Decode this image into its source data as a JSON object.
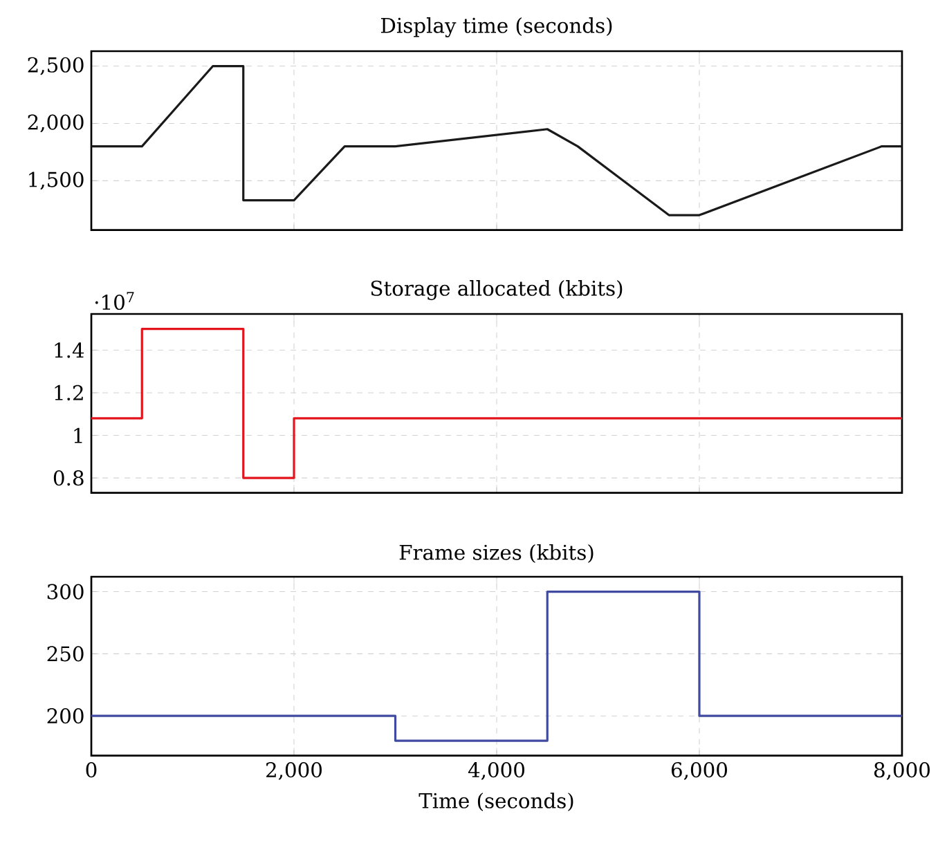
{
  "chart_data": [
    {
      "type": "line",
      "title": "Display time (seconds)",
      "x": [
        0,
        500,
        1200,
        1500,
        1500,
        2000,
        2500,
        3000,
        4500,
        4800,
        5700,
        6000,
        7800,
        8000
      ],
      "values": [
        1800,
        1800,
        2500,
        2500,
        1330,
        1330,
        1800,
        1800,
        1950,
        1800,
        1200,
        1200,
        1800,
        1800
      ],
      "color": "#1a1a1a",
      "xlim": [
        0,
        8000
      ],
      "xticks": [
        0,
        2000,
        4000,
        6000,
        8000
      ],
      "ylim": [
        1070,
        2630
      ],
      "yticks": [
        {
          "value": 1500,
          "label": "1,500"
        },
        {
          "value": 2000,
          "label": "2,000"
        },
        {
          "value": 2500,
          "label": "2,500"
        }
      ],
      "grid": true,
      "tick_labels": "y"
    },
    {
      "type": "step",
      "title": "Storage allocated (kbits)",
      "x": [
        0,
        500,
        1500,
        2000,
        8000
      ],
      "values": [
        1.08,
        1.5,
        0.8,
        1.08,
        1.08
      ],
      "color": "#e3141c",
      "xlim": [
        0,
        8000
      ],
      "xticks": [
        0,
        2000,
        4000,
        6000,
        8000
      ],
      "ylim": [
        0.73,
        1.57
      ],
      "yticks": [
        0.8,
        1,
        1.2,
        1.4
      ],
      "annotations": [
        "·10$^{7}$"
      ],
      "grid": true,
      "tick_labels": "y"
    },
    {
      "type": "step",
      "title": "Frame sizes (kbits)",
      "xlabel": "Time (seconds)",
      "x": [
        0,
        3000,
        4500,
        6000,
        8000
      ],
      "values": [
        200,
        180,
        300,
        200,
        200
      ],
      "color": "#3f4aa0",
      "xlim": [
        0,
        8000
      ],
      "xticks": [
        0,
        {
          "value": 2000,
          "label": "2,000"
        },
        {
          "value": 4000,
          "label": "4,000"
        },
        {
          "value": 6000,
          "label": "6,000"
        },
        {
          "value": 8000,
          "label": "8,000"
        }
      ],
      "ylim": [
        168,
        312
      ],
      "yticks": [
        200,
        250,
        300
      ],
      "grid": true
    }
  ]
}
